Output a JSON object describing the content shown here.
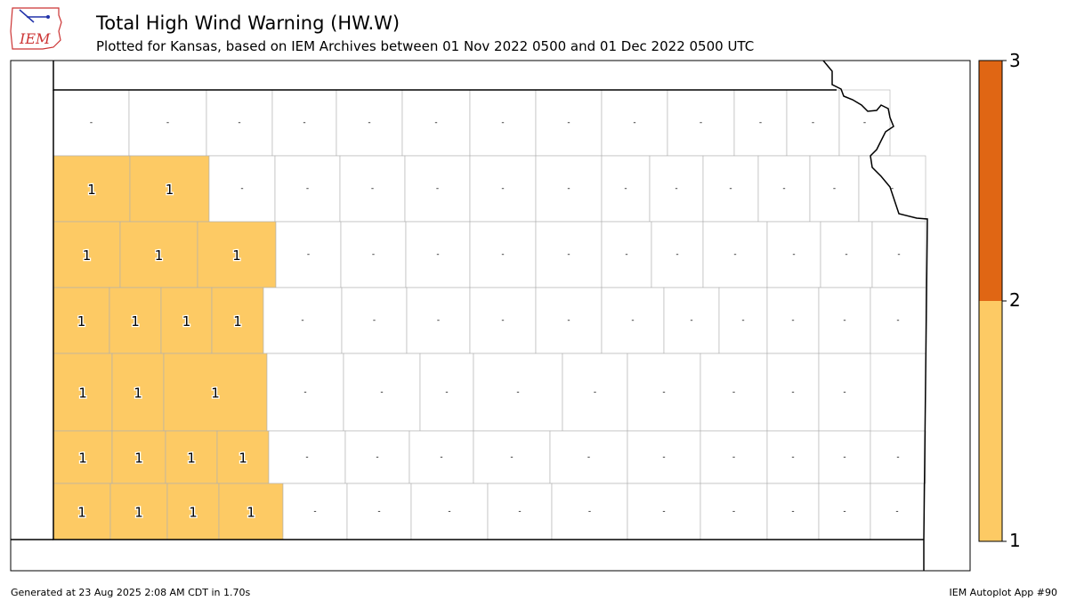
{
  "header": {
    "title": "Total High Wind Warning (HW.W)",
    "subtitle": "Plotted for Kansas, based on IEM Archives  between 01 Nov 2022 0500 and 01 Dec 2022 0500 UTC",
    "logo_text": "IEM"
  },
  "footer": {
    "generated": "Generated at 23 Aug 2025 2:08 AM CDT in 1.70s",
    "app": "IEM Autoplot App #90"
  },
  "colorbar": {
    "ticks": [
      "1",
      "2",
      "3"
    ],
    "colors": {
      "low": "#fdca64",
      "high": "#e06614"
    }
  },
  "colors": {
    "warned_fill": "#fdca64",
    "no_data_fill": "#ffffff"
  },
  "counties": {
    "row1": [
      "-",
      "-",
      "-",
      "-",
      "-",
      "-",
      "-",
      "-",
      "-",
      "-",
      "-",
      "-",
      "-"
    ],
    "row2": [
      "1",
      "1",
      "-",
      "-",
      "-",
      "-",
      "-",
      "-",
      "-",
      "-",
      "-",
      "-",
      "-",
      "-"
    ],
    "row3": [
      "1",
      "1",
      "1",
      "-",
      "-",
      "-",
      "-",
      "-",
      "-",
      "-",
      "-",
      "-",
      "-",
      "-"
    ],
    "row4": [
      "1",
      "1",
      "1",
      "1",
      "-",
      "-",
      "-",
      "-",
      "-",
      "-",
      "-",
      "-",
      "-",
      "-",
      "-"
    ],
    "row5": [
      "1",
      "1",
      "1",
      "-",
      "-",
      "-",
      "-",
      "-",
      "-",
      "-",
      "-",
      "-"
    ],
    "row6": [
      "1",
      "1",
      "1",
      "1",
      "-",
      "-",
      "-",
      "-",
      "-",
      "-",
      "-",
      "-",
      "-",
      "-"
    ],
    "row7": [
      "1",
      "1",
      "1",
      "1",
      "-",
      "-",
      "-",
      "-",
      "-",
      "-",
      "-",
      "-",
      "-",
      "-",
      "-"
    ]
  }
}
